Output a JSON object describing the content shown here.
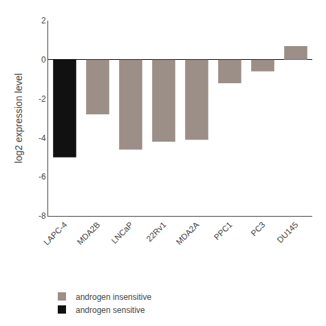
{
  "chart_data": {
    "type": "bar",
    "categories": [
      "LAPC-4",
      "MDA2B",
      "LNCaP",
      "22Rv1",
      "MDA2A",
      "PPC1",
      "PC3",
      "DU145"
    ],
    "series": [
      {
        "name": "androgen insensitive",
        "color": "#9b8f88",
        "values": [
          null,
          -2.8,
          -4.6,
          -4.2,
          -4.1,
          -1.2,
          -0.6,
          0.7
        ]
      },
      {
        "name": "androgen sensitive",
        "color": "#111111",
        "values": [
          -5.0,
          null,
          null,
          null,
          null,
          null,
          null,
          null
        ]
      }
    ],
    "ylabel": "log2 expression level",
    "ylim": [
      -8,
      2
    ],
    "yticks": [
      -8,
      -6,
      -4,
      -2,
      0,
      2
    ],
    "grid": false,
    "legend": "bottom"
  }
}
